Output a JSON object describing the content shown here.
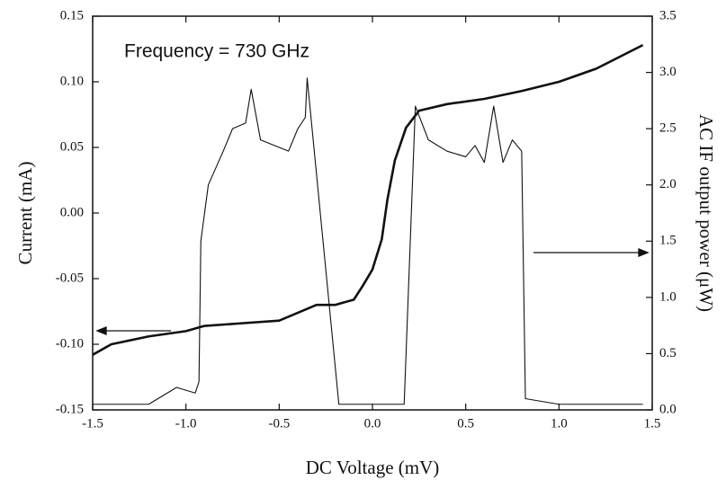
{
  "chart_data": {
    "type": "line",
    "annotation": "Frequency = 730 GHz",
    "x_label": "DC Voltage (mV)",
    "y_label": "Current (mA)",
    "y2_label": "AC IF output power (μW)",
    "xlim": [
      -1.5,
      1.5
    ],
    "ylim": [
      -0.15,
      0.15
    ],
    "y2lim": [
      0,
      3.5
    ],
    "xticks": [
      {
        "value": -1.5,
        "label": "-1.5"
      },
      {
        "value": -1,
        "label": "-1.0"
      },
      {
        "value": -0.5,
        "label": "-0.5"
      },
      {
        "value": 0,
        "label": "0.0"
      },
      {
        "value": 0.5,
        "label": "0.5"
      },
      {
        "value": 1,
        "label": "1.0"
      },
      {
        "value": 1.5,
        "label": "1.5"
      }
    ],
    "yticks": [
      {
        "value": -0.15,
        "label": "-0.15"
      },
      {
        "value": -0.1,
        "label": "-0.10"
      },
      {
        "value": -0.05,
        "label": "-0.05"
      },
      {
        "value": 0,
        "label": "0.00"
      },
      {
        "value": 0.05,
        "label": "0.05"
      },
      {
        "value": 0.1,
        "label": "0.10"
      },
      0.15
    ],
    "y2ticks": [
      {
        "value": 0,
        "label": "0.0"
      },
      0.5,
      {
        "value": 1,
        "label": "1.0"
      },
      1.5,
      {
        "value": 2,
        "label": "2.0"
      },
      2.5,
      {
        "value": 3,
        "label": "3.0"
      },
      3.5
    ],
    "series": [
      {
        "color": "#111111",
        "width": 2.6,
        "x": [
          -1.5,
          -1.4,
          -1.2,
          -1.0,
          -0.9,
          -0.7,
          -0.5,
          -0.4,
          -0.3,
          -0.2,
          -0.1,
          -0.05,
          0.0,
          0.05,
          0.08,
          0.12,
          0.18,
          0.25,
          0.4,
          0.6,
          0.8,
          1.0,
          1.2,
          1.45
        ],
        "values": [
          -0.108,
          -0.1,
          -0.094,
          -0.09,
          -0.086,
          -0.084,
          -0.082,
          -0.076,
          -0.07,
          -0.07,
          -0.066,
          -0.055,
          -0.043,
          -0.02,
          0.01,
          0.04,
          0.065,
          0.078,
          0.083,
          0.087,
          0.093,
          0.1,
          0.11,
          0.128
        ]
      },
      {
        "color": "#111111",
        "width": 1.1,
        "axis": "y2",
        "x": [
          -1.5,
          -1.2,
          -1.05,
          -0.95,
          -0.93,
          -0.92,
          -0.88,
          -0.8,
          -0.75,
          -0.68,
          -0.65,
          -0.6,
          -0.45,
          -0.4,
          -0.36,
          -0.35,
          -0.18,
          0.0,
          0.17,
          0.23,
          0.3,
          0.4,
          0.5,
          0.55,
          0.6,
          0.65,
          0.7,
          0.75,
          0.8,
          0.82,
          1.0,
          1.45
        ],
        "values": [
          0.05,
          0.05,
          0.2,
          0.15,
          0.25,
          1.5,
          2.0,
          2.3,
          2.5,
          2.55,
          2.85,
          2.4,
          2.3,
          2.5,
          2.6,
          2.95,
          0.05,
          0.05,
          0.05,
          2.7,
          2.4,
          2.3,
          2.25,
          2.35,
          2.2,
          2.7,
          2.2,
          2.4,
          2.3,
          0.1,
          0.05,
          0.05
        ]
      }
    ]
  }
}
